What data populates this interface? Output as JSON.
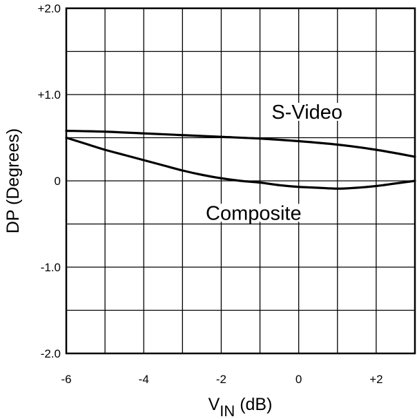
{
  "chart_data": {
    "type": "line",
    "title": "",
    "xlabel_main": "V",
    "xlabel_sub": "IN",
    "xlabel_unit": " (dB)",
    "ylabel": "DP (Degrees)",
    "xlim": [
      -6,
      3
    ],
    "ylim": [
      -2,
      2
    ],
    "x_ticks": [
      -6,
      -4,
      -2,
      0,
      2
    ],
    "x_tick_labels": [
      "-6",
      "-4",
      "-2",
      "0",
      "+2"
    ],
    "y_ticks": [
      2,
      1,
      0,
      -1,
      -2
    ],
    "y_tick_labels": [
      "+2.0",
      "+1.0",
      "0",
      "-1.0",
      "-2.0"
    ],
    "x_gridlines": [
      -5,
      -4,
      -3,
      -2,
      -1,
      0,
      1,
      2
    ],
    "y_gridlines": [
      1.5,
      1,
      0.5,
      0,
      -0.5,
      -1,
      -1.5
    ],
    "grid": true,
    "series": [
      {
        "name": "S-Video",
        "label_at": [
          -0.7,
          0.72
        ],
        "x": [
          -6,
          -5,
          -4,
          -3,
          -2,
          -1,
          0,
          1,
          2,
          3
        ],
        "y": [
          0.58,
          0.57,
          0.55,
          0.53,
          0.51,
          0.49,
          0.46,
          0.42,
          0.36,
          0.28
        ]
      },
      {
        "name": "Composite",
        "label_at": [
          -2.4,
          -0.45
        ],
        "x": [
          -6,
          -5.5,
          -5,
          -4.5,
          -4,
          -3.5,
          -3,
          -2.5,
          -2,
          -1.5,
          -1,
          -0.5,
          0,
          0.5,
          1,
          1.5,
          2,
          2.5,
          3
        ],
        "y": [
          0.5,
          0.43,
          0.36,
          0.3,
          0.24,
          0.18,
          0.12,
          0.07,
          0.03,
          0.0,
          -0.02,
          -0.05,
          -0.07,
          -0.08,
          -0.09,
          -0.08,
          -0.06,
          -0.03,
          0.0
        ]
      }
    ]
  }
}
